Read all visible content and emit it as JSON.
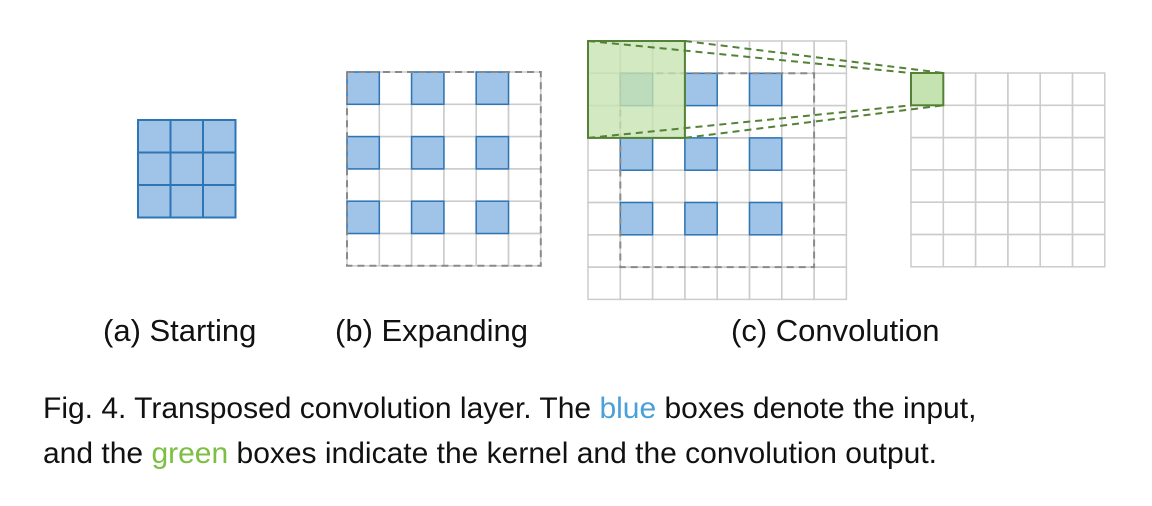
{
  "labels": {
    "starting": "(a) Starting",
    "expanding": "(b) Expanding",
    "convolution": "(c) Convolution"
  },
  "caption": {
    "line1_pre": "Fig. 4. Transposed convolution layer. The ",
    "blue_word": "blue",
    "line1_post": " boxes denote the input,",
    "line2_pre": "and the ",
    "green_word": "green",
    "line2_post": " boxes indicate the kernel and the convolution output."
  },
  "colors": {
    "blue_fill": "#9fc4e8",
    "blue_stroke": "#2e75b6",
    "green_fill": "#c5e3b0",
    "green_stroke": "#538135",
    "grid": "#cccccc",
    "dashed": "#8a8a8a",
    "blue_text": "#4aa0d8",
    "green_text": "#7cbf42"
  },
  "structure": {
    "input_size": 3,
    "expanded_size": 6,
    "padded_size": 8,
    "kernel_size": 3,
    "output_size": 6
  }
}
